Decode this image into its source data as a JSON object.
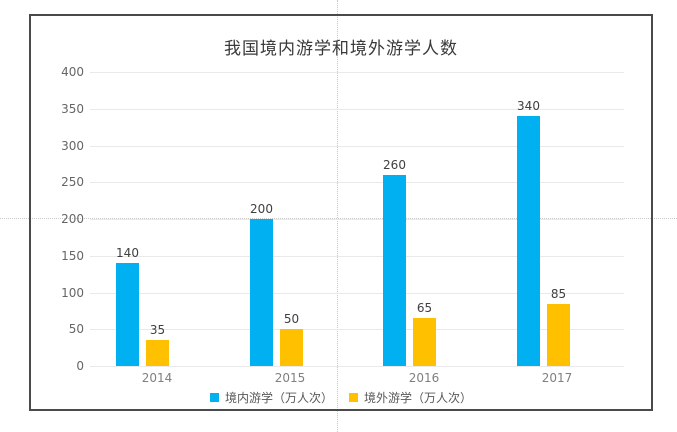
{
  "chart_data": {
    "type": "bar",
    "title": "我国境内游学和境外游学人数",
    "categories": [
      "2014",
      "2015",
      "2016",
      "2017"
    ],
    "series": [
      {
        "name": "境内游学（万人次）",
        "color": "#00B0F0",
        "values": [
          140,
          200,
          260,
          340
        ]
      },
      {
        "name": "境外游学（万人次）",
        "color": "#FFC000",
        "values": [
          35,
          50,
          65,
          85
        ]
      }
    ],
    "yticks": [
      0,
      50,
      100,
      150,
      200,
      250,
      300,
      350,
      400
    ],
    "ylim": [
      0,
      400
    ],
    "xlabel": "",
    "ylabel": "",
    "grid": true,
    "legend_position": "bottom",
    "value_labels": true
  }
}
